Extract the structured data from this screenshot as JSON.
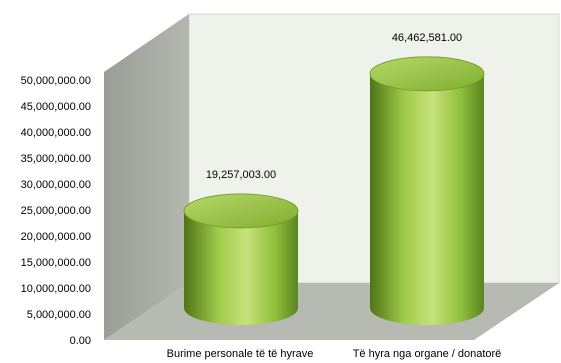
{
  "chart_data": {
    "type": "bar",
    "style": "3d-cylinder",
    "categories": [
      "Burime personale të të hyrave",
      "Të hyra nga organe / donatorë"
    ],
    "values": [
      19257003.0,
      46462581.0
    ],
    "value_labels": [
      "19,257,003.00",
      "46,462,581.00"
    ],
    "y_ticks": [
      "0.00",
      "5,000,000.00",
      "10,000,000.00",
      "15,000,000.00",
      "20,000,000.00",
      "25,000,000.00",
      "30,000,000.00",
      "35,000,000.00",
      "40,000,000.00",
      "45,000,000.00",
      "50,000,000.00"
    ],
    "ylim": [
      0,
      50000000
    ],
    "title": "",
    "xlabel": "",
    "ylabel": "",
    "grid": false,
    "legend": "none",
    "colors": {
      "bar_fill": "#8fbf3a",
      "bar_highlight": "#c8e27a",
      "bar_shadow": "#4f7416",
      "left_wall": "#a9aba5",
      "back_wall": "#eef2ea",
      "floor": "#b7b9b3",
      "axis_text": "#000000"
    }
  }
}
